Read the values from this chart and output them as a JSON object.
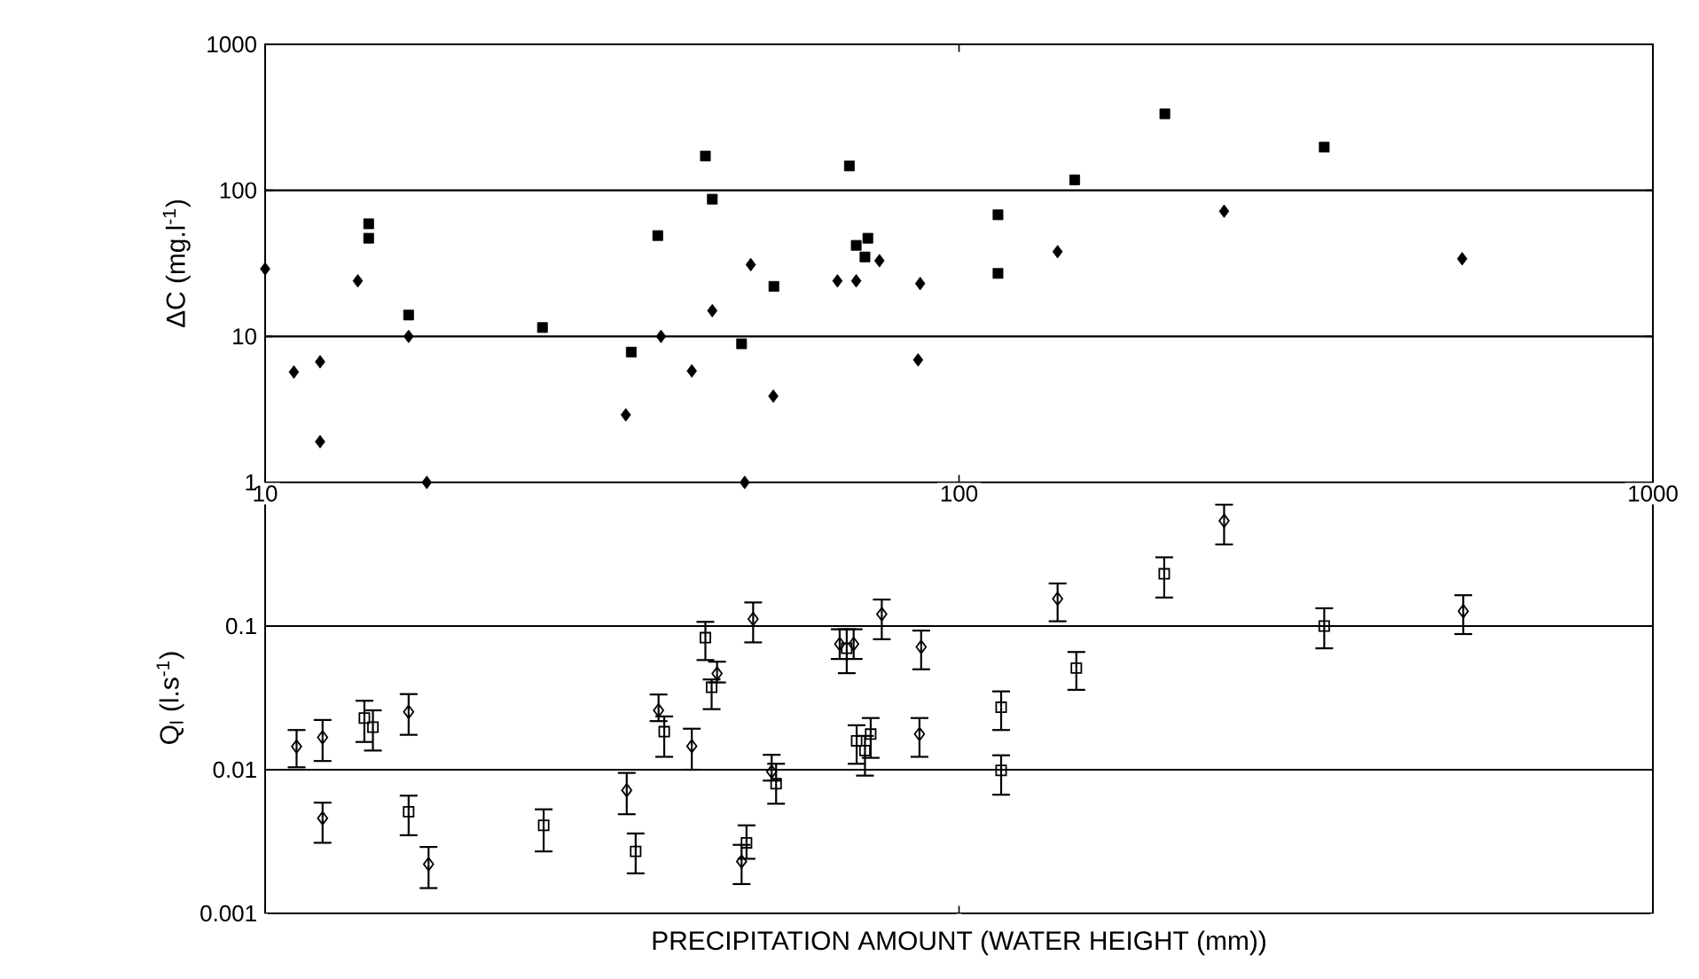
{
  "chart_data": [
    {
      "type": "scatter",
      "ylabel": "ΔC (mg.l$^{-1}$)",
      "log": "xy",
      "xlim": [
        10,
        1000
      ],
      "ylim": [
        1,
        1000
      ],
      "xticks": [
        10,
        100,
        1000
      ],
      "yticks": [
        1,
        10,
        100,
        1000
      ],
      "grid": "y",
      "series": [
        {
          "color": "#000000",
          "marker": "diamond",
          "x": [
            10,
            11,
            12,
            12,
            13.6,
            16.1,
            17.1,
            33.1,
            37.2,
            41.2,
            44.1,
            49.1,
            50.1,
            54,
            66.8,
            71.1,
            76.8,
            87.9,
            87.3,
            138.7,
            241,
            531
          ],
          "values": [
            29,
            5.7,
            6.7,
            1.9,
            24,
            10,
            1,
            2.9,
            10,
            5.8,
            15,
            1,
            31,
            3.9,
            24,
            24,
            33,
            23,
            6.9,
            38,
            72,
            34
          ]
        },
        {
          "color": "#000000",
          "marker": "square",
          "x": [
            14.1,
            14.1,
            16.1,
            25.1,
            33.7,
            36.8,
            43.1,
            44.1,
            48.6,
            54.1,
            69.5,
            71.1,
            73.9,
            73.2,
            113.8,
            113.8,
            146.8,
            198,
            336
          ],
          "values": [
            59,
            47,
            14,
            11.5,
            7.8,
            49,
            172,
            87,
            8.9,
            22,
            147,
            42,
            47,
            35,
            68,
            27,
            118,
            334,
            198
          ]
        }
      ]
    },
    {
      "type": "scatter",
      "ylabel": "Q$_{l}$ (l.s$^{-1}$)",
      "xlabel": "PRECIPITATION AMOUNT  (WATER HEIGHT (mm))",
      "log": "xy",
      "xlim": [
        10,
        1000
      ],
      "ylim": [
        0.001,
        1
      ],
      "xticks": [
        10,
        100,
        1000
      ],
      "yticks": [
        0.001,
        0.01,
        0.1
      ],
      "grid": "y",
      "tick_labels": "y",
      "series": [
        {
          "color": "#000000",
          "marker": "diamond",
          "x": [
            11.1,
            12.1,
            12.1,
            16.1,
            17.2,
            33.2,
            36.9,
            41.2,
            44.8,
            48.6,
            50.5,
            53.7,
            67.3,
            70.5,
            77.4,
            87.7,
            88.2,
            138.7,
            241,
            533
          ],
          "values": [
            0.0145,
            0.0168,
            0.0046,
            0.0253,
            0.0022,
            0.0072,
            0.0259,
            0.0146,
            0.0467,
            0.0023,
            0.112,
            0.0097,
            0.075,
            0.075,
            0.121,
            0.0177,
            0.0716,
            0.155,
            0.54,
            0.127
          ],
          "errors": [
            [
              0.0104,
              0.0189
            ],
            [
              0.0115,
              0.0222
            ],
            [
              0.0031,
              0.0059
            ],
            [
              0.0175,
              0.0336
            ],
            [
              0.0015,
              0.0029
            ],
            [
              0.0049,
              0.0095
            ],
            [
              0.0218,
              0.0334
            ],
            [
              0.01,
              0.0193
            ],
            [
              0.0405,
              0.0565
            ],
            [
              0.0016,
              0.003
            ],
            [
              0.077,
              0.146
            ],
            [
              0.0084,
              0.0127
            ],
            [
              0.059,
              0.095
            ],
            [
              0.059,
              0.095
            ],
            [
              0.081,
              0.153
            ],
            [
              0.0123,
              0.0229
            ],
            [
              0.05,
              0.093
            ],
            [
              0.108,
              0.198
            ],
            [
              0.37,
              0.7
            ],
            [
              0.088,
              0.164
            ]
          ]
        },
        {
          "color": "#000000",
          "marker": "square",
          "x": [
            13.9,
            14.3,
            16.1,
            25.2,
            34.2,
            37.6,
            43.1,
            44.0,
            49.4,
            54.5,
            68.9,
            71.2,
            73.2,
            74.6,
            115,
            115,
            147.6,
            197.6,
            336
          ],
          "values": [
            0.0229,
            0.0198,
            0.0051,
            0.0041,
            0.0027,
            0.0184,
            0.083,
            0.0375,
            0.0031,
            0.008,
            0.07,
            0.0159,
            0.0136,
            0.0177,
            0.0272,
            0.0099,
            0.051,
            0.231,
            0.1
          ],
          "errors": [
            [
              0.0156,
              0.0302
            ],
            [
              0.0136,
              0.0259
            ],
            [
              0.0035,
              0.0066
            ],
            [
              0.0027,
              0.0053
            ],
            [
              0.0019,
              0.0036
            ],
            [
              0.0123,
              0.0235
            ],
            [
              0.058,
              0.107
            ],
            [
              0.0264,
              0.0425
            ],
            [
              0.0024,
              0.0041
            ],
            [
              0.0058,
              0.011
            ],
            [
              0.047,
              0.095
            ],
            [
              0.011,
              0.0204
            ],
            [
              0.0091,
              0.0172
            ],
            [
              0.0121,
              0.0229
            ],
            [
              0.0189,
              0.0351
            ],
            [
              0.0067,
              0.0126
            ],
            [
              0.036,
              0.066
            ],
            [
              0.158,
              0.301
            ],
            [
              0.07,
              0.133
            ]
          ]
        }
      ]
    }
  ]
}
